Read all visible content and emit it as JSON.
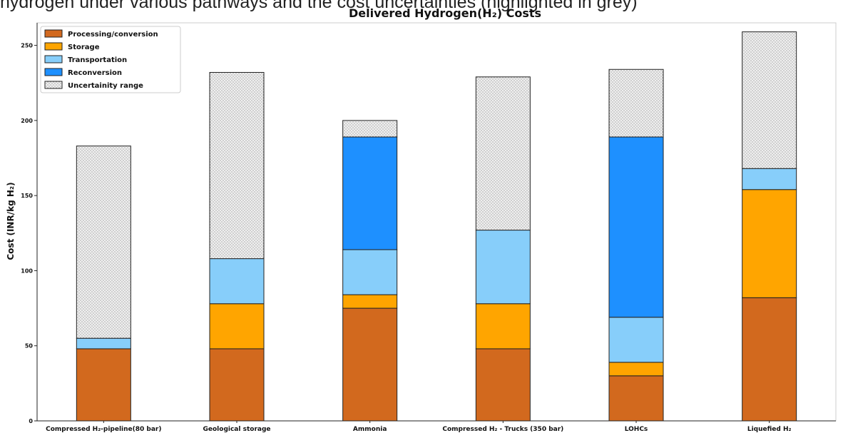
{
  "caption": "hydrogen under various pathways and the cost uncertainties (highlighted in grey)",
  "chart_data": {
    "type": "bar",
    "stacked": true,
    "title": "Delivered Hydrogen(H₂) Costs",
    "xlabel": "",
    "ylabel": "Cost (INR/kg H₂)",
    "ylim": [
      0,
      265
    ],
    "yticks": [
      0,
      50,
      100,
      150,
      200,
      250
    ],
    "grid": false,
    "legend_position": "top-left",
    "categories": [
      "Compressed H₂-pipeline(80 bar)",
      "Geological storage",
      "Ammonia",
      "Compressed H₂ - Trucks (350 bar)",
      "LOHCs",
      "Liquefied H₂"
    ],
    "series": [
      {
        "name": "Processing/conversion",
        "color": "#d2691e",
        "values": [
          48,
          48,
          75,
          48,
          30,
          82
        ]
      },
      {
        "name": "Storage",
        "color": "#ffa500",
        "values": [
          0,
          30,
          9,
          30,
          9,
          72
        ]
      },
      {
        "name": "Transportation",
        "color": "#87cefa",
        "values": [
          7,
          30,
          30,
          49,
          30,
          14
        ]
      },
      {
        "name": "Reconversion",
        "color": "#1e90ff",
        "values": [
          0,
          0,
          75,
          0,
          120,
          0
        ]
      },
      {
        "name": "Uncertainity range",
        "color": "#e8e8e8",
        "pattern": "dots",
        "values": [
          128,
          124,
          11,
          102,
          45,
          91
        ]
      }
    ]
  }
}
